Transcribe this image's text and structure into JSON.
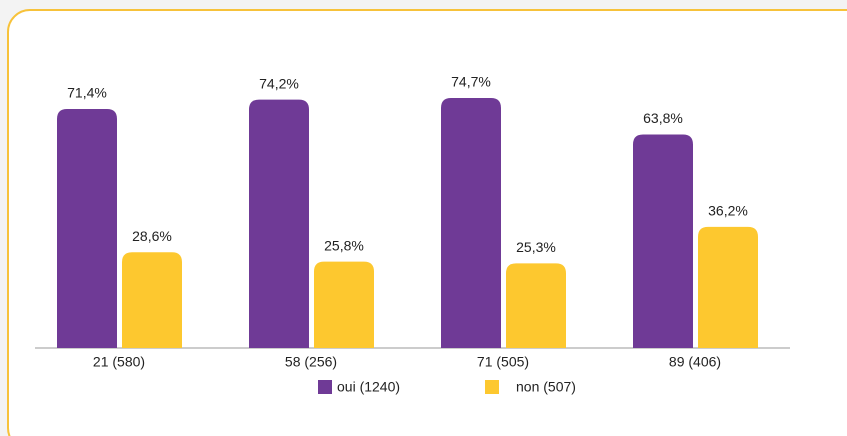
{
  "chart_data": {
    "type": "bar",
    "categories": [
      "21 (580)",
      "58 (256)",
      "71 (505)",
      "89 (406)"
    ],
    "series": [
      {
        "name": "oui (1240)",
        "color": "#6f3a96",
        "values": [
          71.4,
          74.2,
          74.7,
          63.8
        ],
        "value_labels": [
          "71,4%",
          "74,2%",
          "74,7%",
          "63,8%"
        ]
      },
      {
        "name": "non (507)",
        "color": "#fdc82f",
        "values": [
          28.6,
          25.8,
          25.3,
          36.2
        ],
        "value_labels": [
          "28,6%",
          "25,8%",
          "25,3%",
          "36,2%"
        ]
      }
    ],
    "legend": "bottom"
  }
}
